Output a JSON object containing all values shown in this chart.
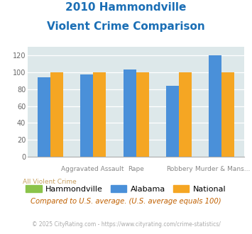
{
  "title_line1": "2010 Hammondville",
  "title_line2": "Violent Crime Comparison",
  "category_top": [
    "",
    "Aggravated Assault",
    "Rape",
    "Robbery",
    "Murder & Mans..."
  ],
  "category_bot": [
    "All Violent Crime",
    "",
    "",
    "",
    ""
  ],
  "alabama": [
    94,
    97,
    103,
    84,
    120
  ],
  "national": [
    100,
    100,
    100,
    100,
    100
  ],
  "color_hammondville": "#8bc34a",
  "color_alabama": "#4a90d9",
  "color_national": "#f5a623",
  "ylim": [
    0,
    130
  ],
  "yticks": [
    0,
    20,
    40,
    60,
    80,
    100,
    120
  ],
  "bg_color": "#dde8ea",
  "title_color": "#1a6eb5",
  "xlabel_color_top": "#888888",
  "xlabel_color_bot": "#c8a060",
  "legend_label_hammondville": "Hammondville",
  "legend_label_alabama": "Alabama",
  "legend_label_national": "National",
  "footnote": "Compared to U.S. average. (U.S. average equals 100)",
  "copyright": "© 2025 CityRating.com - https://www.cityrating.com/crime-statistics/",
  "footnote_color": "#c06000",
  "copyright_color": "#aaaaaa"
}
